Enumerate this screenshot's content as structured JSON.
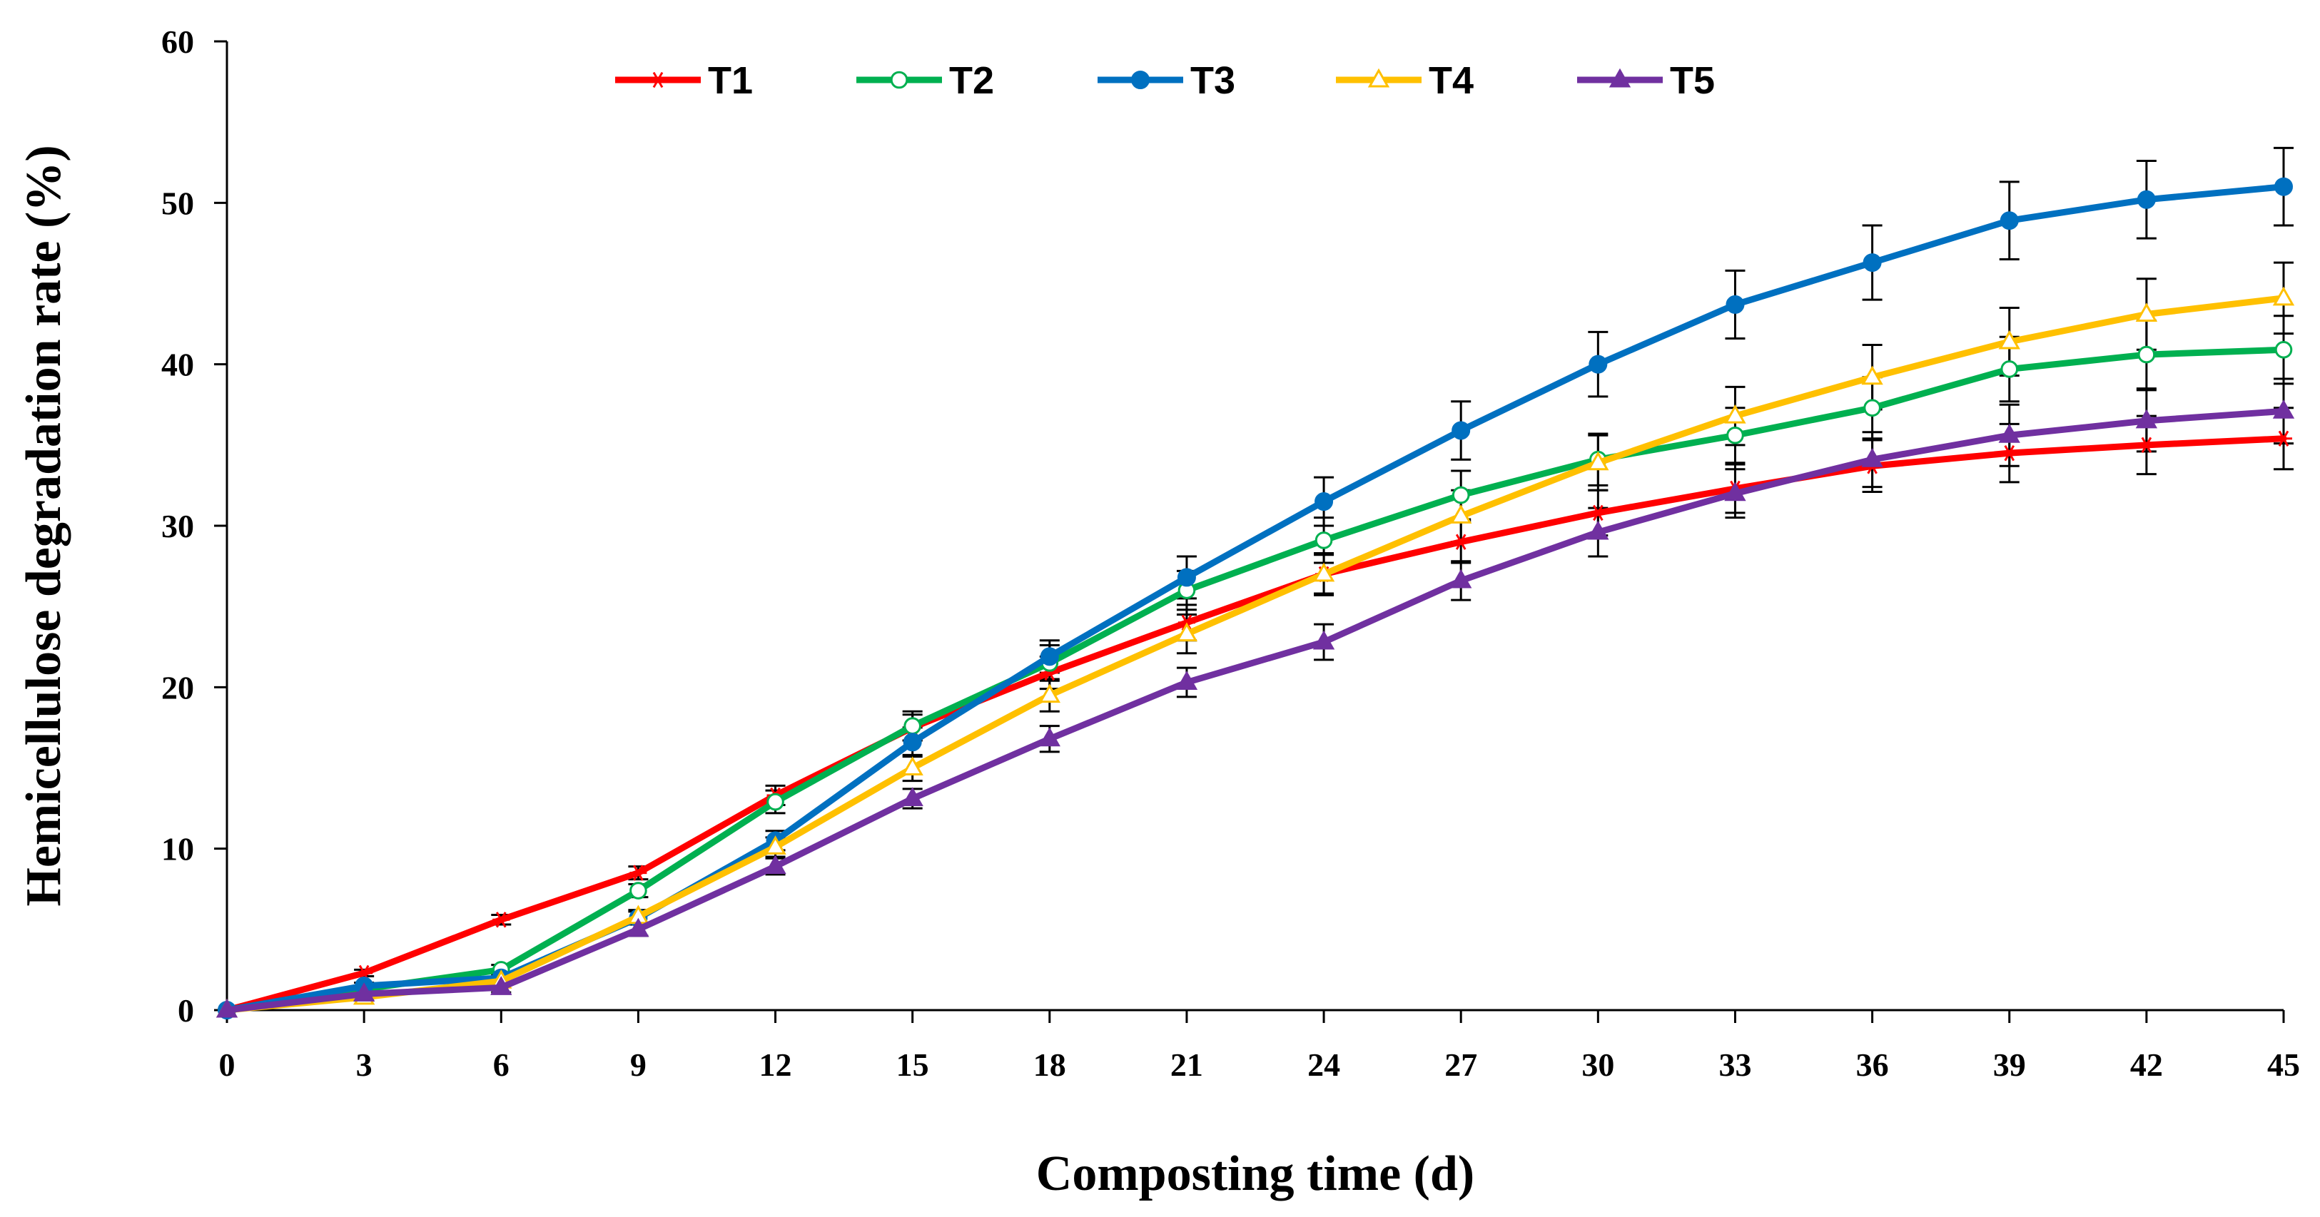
{
  "chart_data": {
    "type": "line",
    "title": "",
    "xlabel": "Composting time (d)",
    "ylabel": "Hemicellulose  degradation rate (%)",
    "x": [
      0,
      3,
      6,
      9,
      12,
      15,
      18,
      21,
      24,
      27,
      30,
      33,
      36,
      39,
      42,
      45
    ],
    "x_tick_labels": [
      "0",
      "3",
      "6",
      "9",
      "12",
      "15",
      "18",
      "21",
      "24",
      "27",
      "30",
      "33",
      "36",
      "39",
      "42",
      "45"
    ],
    "xlim": [
      0,
      45
    ],
    "ylim": [
      0,
      60
    ],
    "y_ticks": [
      0,
      10,
      20,
      30,
      40,
      50,
      60
    ],
    "y_tick_labels": [
      "0",
      "10",
      "20",
      "30",
      "40",
      "50",
      "60"
    ],
    "grid": false,
    "legend_position": "top",
    "series": [
      {
        "name": "T1",
        "color": "#ff0000",
        "marker": "asterisk",
        "values": [
          0,
          2.3,
          5.6,
          8.5,
          13.3,
          17.5,
          20.9,
          24.0,
          27.0,
          29.0,
          30.8,
          32.3,
          33.7,
          34.5,
          35.0,
          35.4
        ],
        "errors": [
          0,
          0.2,
          0.3,
          0.4,
          0.6,
          0.8,
          1.0,
          1.1,
          1.2,
          1.3,
          1.4,
          1.5,
          1.6,
          1.8,
          1.8,
          1.9
        ]
      },
      {
        "name": "T2",
        "color": "#00b050",
        "marker": "circle-open",
        "values": [
          0,
          1.3,
          2.5,
          7.4,
          12.9,
          17.6,
          21.5,
          26.0,
          29.1,
          31.9,
          34.1,
          35.6,
          37.3,
          39.7,
          40.6,
          40.9
        ],
        "errors": [
          0,
          0.2,
          0.3,
          0.4,
          0.7,
          0.9,
          1.1,
          1.2,
          1.4,
          1.5,
          1.6,
          1.7,
          1.9,
          2.0,
          2.1,
          2.1
        ]
      },
      {
        "name": "T3",
        "color": "#0070c0",
        "marker": "circle-filled",
        "values": [
          0,
          1.5,
          2.0,
          5.7,
          10.5,
          16.6,
          21.9,
          26.8,
          31.5,
          35.9,
          40.0,
          43.7,
          46.3,
          48.9,
          50.2,
          51.0
        ],
        "errors": [
          0,
          0.2,
          0.3,
          0.4,
          0.6,
          0.9,
          1.0,
          1.3,
          1.5,
          1.8,
          2.0,
          2.1,
          2.3,
          2.4,
          2.4,
          2.4
        ]
      },
      {
        "name": "T4",
        "color": "#ffc000",
        "marker": "triangle-open",
        "values": [
          0,
          0.8,
          1.8,
          5.8,
          10.1,
          15.0,
          19.5,
          23.3,
          27.0,
          30.6,
          33.9,
          36.8,
          39.2,
          41.4,
          43.1,
          44.1
        ],
        "errors": [
          0,
          0.2,
          0.3,
          0.4,
          0.6,
          0.8,
          1.0,
          1.2,
          1.3,
          1.6,
          1.7,
          1.8,
          2.0,
          2.1,
          2.2,
          2.2
        ]
      },
      {
        "name": "T5",
        "color": "#7030a0",
        "marker": "triangle-filled",
        "values": [
          0,
          1.0,
          1.4,
          5.0,
          8.9,
          13.1,
          16.8,
          20.3,
          22.8,
          26.6,
          29.6,
          32.0,
          34.1,
          35.6,
          36.5,
          37.1
        ],
        "errors": [
          0,
          0.2,
          0.3,
          0.4,
          0.5,
          0.6,
          0.8,
          0.9,
          1.1,
          1.2,
          1.5,
          1.5,
          1.7,
          1.9,
          1.9,
          2.0
        ]
      }
    ]
  }
}
